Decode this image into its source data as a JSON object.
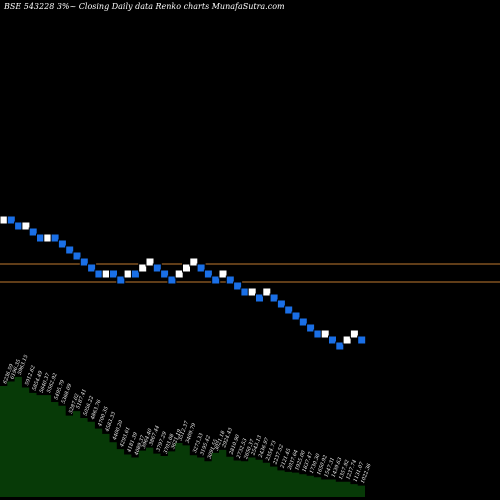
{
  "chart_data": {
    "type": "renko",
    "title": "BSE 543228  3%~  Closing Daily data  Renko  charts MunafaSutra.com",
    "colors": {
      "background": "#000000",
      "up_brick": "#ffffff",
      "down_brick": "#1a6fe6",
      "brick_border": "#000000",
      "reference_line": "#c07a30",
      "volume_fill": "#073a07"
    },
    "brick_count": 50,
    "bricks": [
      {
        "level": 0,
        "dir": "up"
      },
      {
        "level": 0,
        "dir": "down"
      },
      {
        "level": -1,
        "dir": "down"
      },
      {
        "level": -1,
        "dir": "up"
      },
      {
        "level": -2,
        "dir": "down"
      },
      {
        "level": -3,
        "dir": "down"
      },
      {
        "level": -3,
        "dir": "up"
      },
      {
        "level": -3,
        "dir": "down"
      },
      {
        "level": -4,
        "dir": "down"
      },
      {
        "level": -5,
        "dir": "down"
      },
      {
        "level": -6,
        "dir": "down"
      },
      {
        "level": -7,
        "dir": "down"
      },
      {
        "level": -8,
        "dir": "down"
      },
      {
        "level": -9,
        "dir": "down"
      },
      {
        "level": -9,
        "dir": "up"
      },
      {
        "level": -9,
        "dir": "down"
      },
      {
        "level": -10,
        "dir": "down"
      },
      {
        "level": -9,
        "dir": "up"
      },
      {
        "level": -9,
        "dir": "down"
      },
      {
        "level": -8,
        "dir": "up"
      },
      {
        "level": -7,
        "dir": "up"
      },
      {
        "level": -8,
        "dir": "down"
      },
      {
        "level": -9,
        "dir": "down"
      },
      {
        "level": -10,
        "dir": "down"
      },
      {
        "level": -9,
        "dir": "up"
      },
      {
        "level": -8,
        "dir": "up"
      },
      {
        "level": -7,
        "dir": "up"
      },
      {
        "level": -8,
        "dir": "down"
      },
      {
        "level": -9,
        "dir": "down"
      },
      {
        "level": -10,
        "dir": "down"
      },
      {
        "level": -9,
        "dir": "up"
      },
      {
        "level": -10,
        "dir": "down"
      },
      {
        "level": -11,
        "dir": "down"
      },
      {
        "level": -12,
        "dir": "down"
      },
      {
        "level": -12,
        "dir": "up"
      },
      {
        "level": -13,
        "dir": "down"
      },
      {
        "level": -12,
        "dir": "up"
      },
      {
        "level": -13,
        "dir": "down"
      },
      {
        "level": -14,
        "dir": "down"
      },
      {
        "level": -15,
        "dir": "down"
      },
      {
        "level": -16,
        "dir": "down"
      },
      {
        "level": -17,
        "dir": "down"
      },
      {
        "level": -18,
        "dir": "down"
      },
      {
        "level": -19,
        "dir": "down"
      },
      {
        "level": -19,
        "dir": "up"
      },
      {
        "level": -20,
        "dir": "down"
      },
      {
        "level": -21,
        "dir": "down"
      },
      {
        "level": -20,
        "dir": "up"
      },
      {
        "level": -19,
        "dir": "up"
      },
      {
        "level": -20,
        "dir": "down"
      }
    ],
    "reference_lines": [
      {
        "level": -7
      },
      {
        "level": -10
      }
    ],
    "volume_labels": [
      "6236.59",
      "6196.35",
      "5963.15",
      "5912.62",
      "5854.49",
      "5640.37",
      "5562.92",
      "5495.79",
      "5368.09",
      "5287.02",
      "5187.41",
      "5056.22",
      "4863.76",
      "4700.35",
      "4583.33",
      "4400.20",
      "4293.61",
      "4181.39",
      "4089.37",
      "3964.40",
      "3867.44",
      "3797.29",
      "3703.08",
      "3621.19",
      "3512.37",
      "3409.79",
      "3273.33",
      "3195.42",
      "3091.55",
      "3021.18",
      "2924.43",
      "2810.90",
      "2732.53",
      "2650.37",
      "2543.13",
      "2436.97",
      "2354.73",
      "2237.52",
      "2121.45",
      "2037.64",
      "1925.00",
      "1837.47",
      "1730.30",
      "1650.92",
      "1547.31",
      "1439.63",
      "1357.92",
      "1237.74",
      "1131.07",
      "1022.36"
    ],
    "volume": [
      14.6,
      15.2,
      15.8,
      14.4,
      13.7,
      13.4,
      13.4,
      12.5,
      12.0,
      10.7,
      11.3,
      10.4,
      9.9,
      9.0,
      8.3,
      7.2,
      6.3,
      5.6,
      5.2,
      6.1,
      6.5,
      5.7,
      5.4,
      6.0,
      7.1,
      6.8,
      5.5,
      5.2,
      4.7,
      5.8,
      6.2,
      5.3,
      4.8,
      4.7,
      5.2,
      4.9,
      4.5,
      4.0,
      3.5,
      3.3,
      3.2,
      3.0,
      2.8,
      2.6,
      2.3,
      2.3,
      2.0,
      2.0,
      1.7,
      1.5
    ]
  }
}
